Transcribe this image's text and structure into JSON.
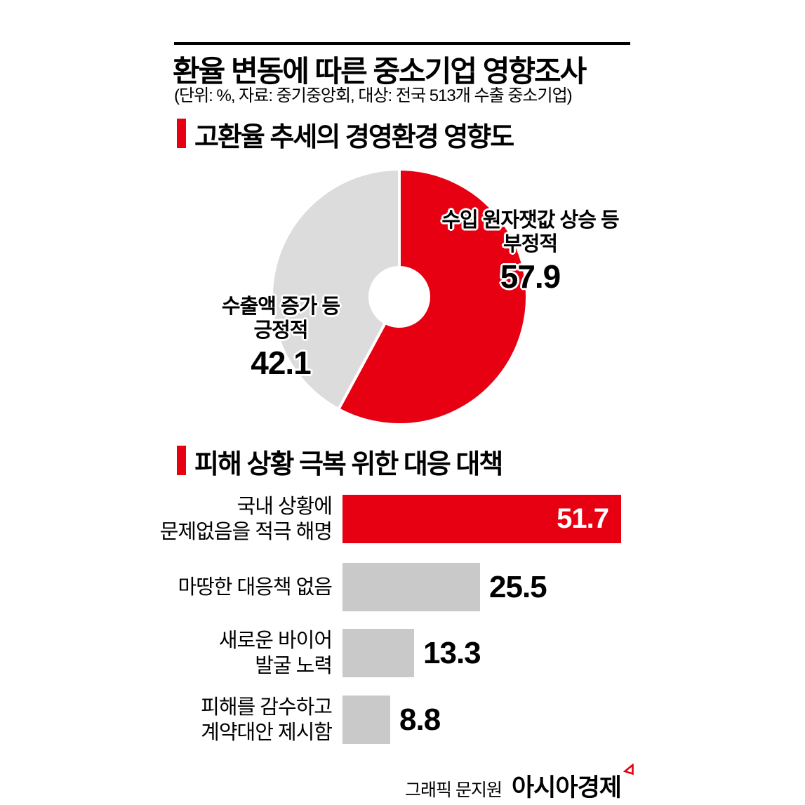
{
  "page": {
    "title": "환율 변동에 따른 중소기업 영향조사",
    "subtitle": "(단위: %, 자료: 중기중앙회, 대상: 전국 513개 수출 중소기업)"
  },
  "colors": {
    "accent_red": "#e60012",
    "pie_gray": "#dcdcdc",
    "bar_gray": "#c9c9c9",
    "text_black": "#000000",
    "slice_divider_white": "#ffffff"
  },
  "footer": {
    "credit": "그래픽 문지원",
    "brand": "아시아경제"
  },
  "chart_data": [
    {
      "type": "pie",
      "title": "고환율 추세의 경영환경 영향도",
      "unit": "%",
      "donut": true,
      "hole_ratio": 0.23,
      "start_angle_deg": 0,
      "direction": "clockwise",
      "slices": [
        {
          "label_lines": [
            "수입 원자잿값 상승 등",
            "부정적"
          ],
          "value": 57.9,
          "color": "#e60012",
          "label_side": "right"
        },
        {
          "label_lines": [
            "수출액 증가 등",
            "긍정적"
          ],
          "value": 42.1,
          "color": "#dcdcdc",
          "label_side": "left"
        }
      ]
    },
    {
      "type": "bar",
      "title": "피해 상황 극복 위한 대응 대책",
      "orientation": "horizontal",
      "unit": "%",
      "xlim": [
        0,
        55
      ],
      "categories": [
        "국내 상황에 문제없음을 적극 해명",
        "마땅한 대응책 없음",
        "새로운 바이어 발굴 노력",
        "피해를 감수하고 계약대안 제시함"
      ],
      "values": [
        51.7,
        25.5,
        13.3,
        8.8
      ],
      "bars": [
        {
          "label_lines": [
            "국내 상황에",
            "문제없음을 적극 해명"
          ],
          "value": 51.7,
          "color": "#e60012",
          "value_inside": true
        },
        {
          "label_lines": [
            "마땅한 대응책 없음"
          ],
          "value": 25.5,
          "color": "#c9c9c9",
          "value_inside": false
        },
        {
          "label_lines": [
            "새로운 바이어",
            "발굴 노력"
          ],
          "value": 13.3,
          "color": "#c9c9c9",
          "value_inside": false
        },
        {
          "label_lines": [
            "피해를 감수하고",
            "계약대안 제시함"
          ],
          "value": 8.8,
          "color": "#c9c9c9",
          "value_inside": false
        }
      ]
    }
  ]
}
